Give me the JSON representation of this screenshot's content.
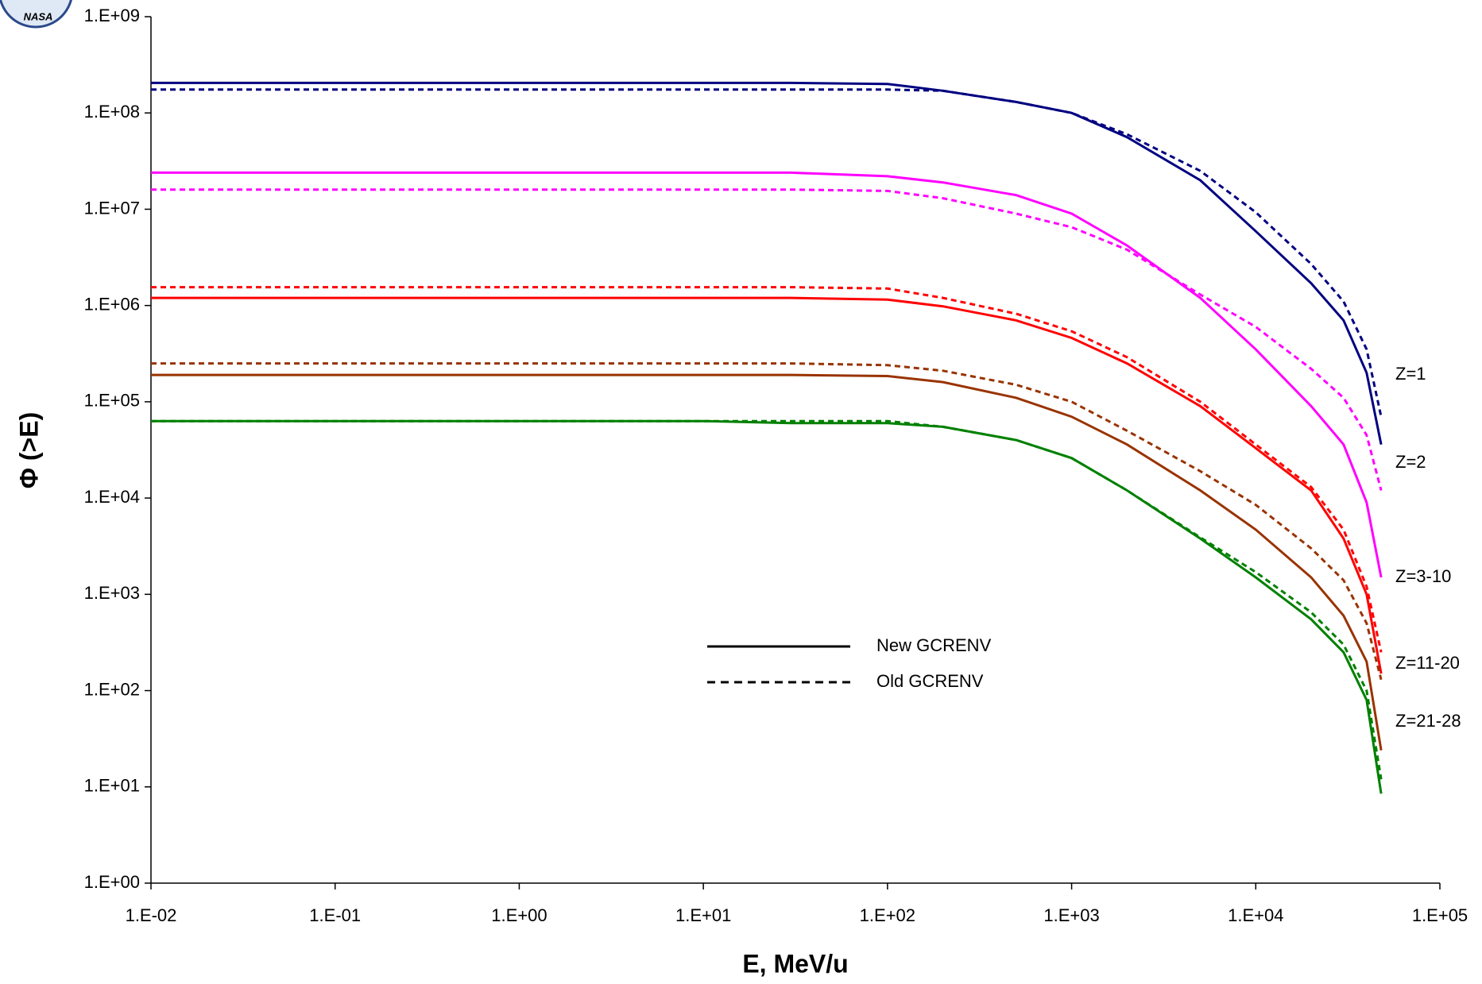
{
  "chart_data": {
    "type": "line",
    "logo_text": "NASA",
    "x_label": "E, MeV/u",
    "y_label": "Φ (>E)",
    "log_x": true,
    "log_y": true,
    "xlim": [
      0.01,
      100000
    ],
    "ylim": [
      1,
      1000000000
    ],
    "xticks": [
      {
        "value": 0.01,
        "label": "1.E-02"
      },
      {
        "value": 0.1,
        "label": "1.E-01"
      },
      {
        "value": 1,
        "label": "1.E+00"
      },
      {
        "value": 10,
        "label": "1.E+01"
      },
      {
        "value": 100,
        "label": "1.E+02"
      },
      {
        "value": 1000,
        "label": "1.E+03"
      },
      {
        "value": 10000,
        "label": "1.E+04"
      },
      {
        "value": 100000,
        "label": "1.E+05"
      }
    ],
    "yticks": [
      {
        "value": 1,
        "label": "1.E+00"
      },
      {
        "value": 10,
        "label": "1.E+01"
      },
      {
        "value": 100,
        "label": "1.E+02"
      },
      {
        "value": 1000,
        "label": "1.E+03"
      },
      {
        "value": 10000,
        "label": "1.E+04"
      },
      {
        "value": 100000,
        "label": "1.E+05"
      },
      {
        "value": 1000000,
        "label": "1.E+06"
      },
      {
        "value": 10000000,
        "label": "1.E+07"
      },
      {
        "value": 100000000,
        "label": "1.E+08"
      },
      {
        "value": 1000000000,
        "label": "1.E+09"
      }
    ],
    "legend": [
      {
        "label": "New GCRENV",
        "dash": false
      },
      {
        "label": "Old GCRENV",
        "dash": true
      }
    ],
    "x": [
      0.01,
      0.1,
      1,
      10,
      30,
      100,
      200,
      500,
      1000,
      2000,
      5000,
      10000,
      20000,
      30000,
      40000,
      48000
    ],
    "groups": [
      {
        "label": "Z=1",
        "color": "#000080",
        "new": [
          205000000,
          205000000,
          205000000,
          205000000,
          205000000,
          200000000,
          170000000,
          130000000,
          100000000,
          56000000,
          20000000,
          5900000,
          1700000,
          700000,
          200000,
          36000
        ],
        "old": [
          175000000,
          175000000,
          175000000,
          175000000,
          175000000,
          175000000,
          170000000,
          130000000,
          100000000,
          60000000,
          25000000,
          9300000,
          2700000,
          1100000,
          350000,
          70000
        ]
      },
      {
        "label": "Z=2",
        "color": "#ff00ff",
        "new": [
          24000000,
          24000000,
          24000000,
          24000000,
          24000000,
          22000000,
          19000000,
          14000000,
          9000000,
          4200000,
          1200000,
          350000,
          90000,
          36000,
          9000,
          1500
        ],
        "old": [
          16000000,
          16000000,
          16000000,
          16000000,
          16000000,
          15500000,
          13000000,
          9000000,
          6500000,
          3800000,
          1300000,
          600000,
          220000,
          110000,
          45000,
          12000
        ]
      },
      {
        "label": "Z=3-10",
        "color": "#ff0000",
        "new": [
          1200000,
          1200000,
          1200000,
          1200000,
          1200000,
          1150000,
          980000,
          700000,
          460000,
          250000,
          90000,
          33000,
          12000,
          3800,
          1000,
          150
        ],
        "old": [
          1550000,
          1550000,
          1550000,
          1550000,
          1550000,
          1500000,
          1200000,
          820000,
          540000,
          290000,
          100000,
          36000,
          13000,
          4700,
          1200,
          250
        ]
      },
      {
        "label": "Z=11-20",
        "color": "#993300",
        "new": [
          190000,
          190000,
          190000,
          190000,
          190000,
          185000,
          160000,
          110000,
          70000,
          36000,
          12000,
          4700,
          1500,
          600,
          200,
          24
        ],
        "old": [
          250000,
          250000,
          250000,
          250000,
          250000,
          240000,
          210000,
          150000,
          100000,
          50000,
          19000,
          8500,
          3000,
          1400,
          500,
          130
        ]
      },
      {
        "label": "Z=21-28",
        "color": "#008000",
        "new": [
          63000,
          63000,
          63000,
          63000,
          60000,
          60000,
          55000,
          40000,
          26000,
          12000,
          3800,
          1500,
          550,
          250,
          80,
          8.5
        ],
        "old": [
          63000,
          63000,
          63000,
          63000,
          63000,
          63000,
          55000,
          40000,
          26000,
          12000,
          3900,
          1700,
          650,
          300,
          100,
          12
        ]
      }
    ]
  }
}
